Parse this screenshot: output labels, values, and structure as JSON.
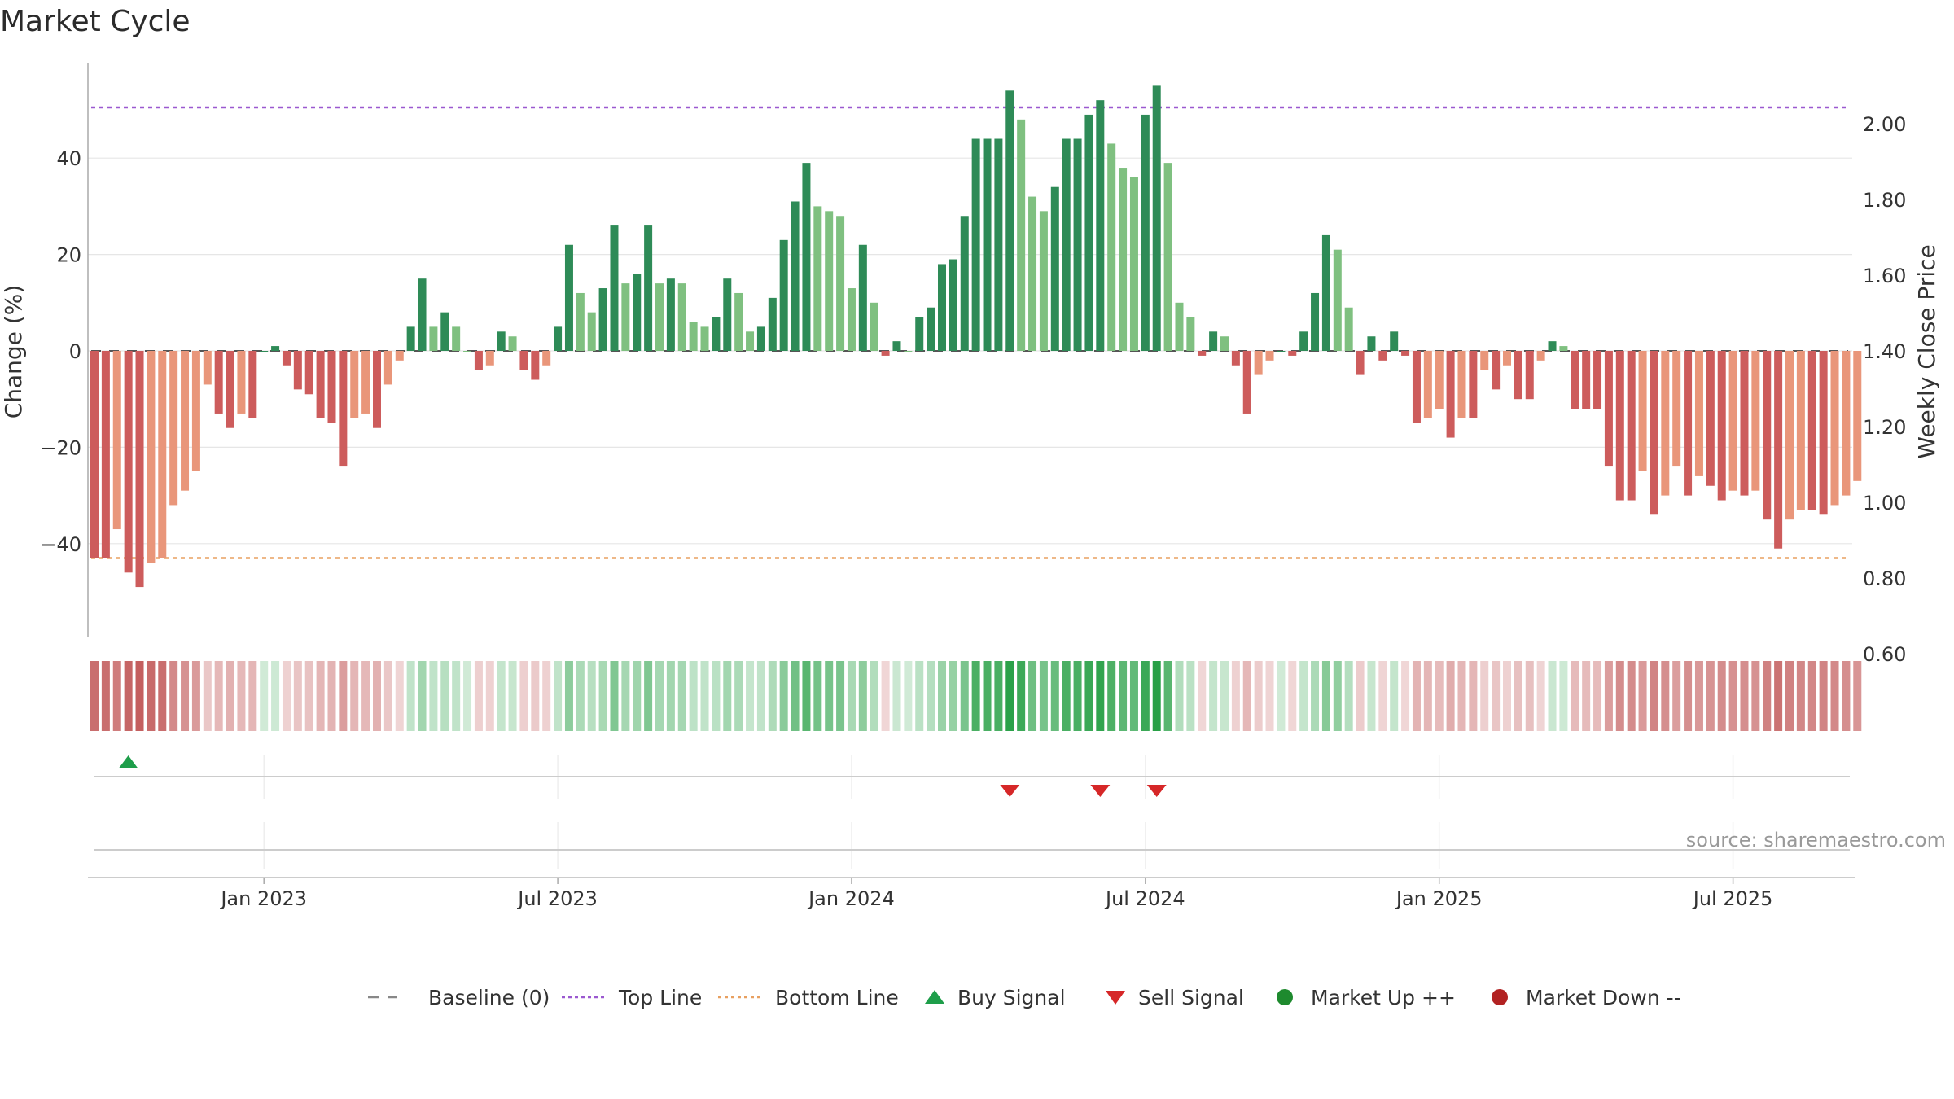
{
  "chart_data": {
    "type": "bar",
    "title": "Market Cycle",
    "ylabel": "Change (%)",
    "y2label": "Weekly Close Price",
    "ylim": [
      -60,
      60
    ],
    "y2lim": [
      0.6,
      2.1
    ],
    "yticks": [
      40,
      20,
      0,
      -20,
      -40
    ],
    "ytick_labels": [
      "40",
      "20",
      "0",
      "−20",
      "−40"
    ],
    "y2ticks": [
      2.0,
      1.8,
      1.6,
      1.4,
      1.2,
      1.0,
      0.8,
      0.6
    ],
    "y2tick_labels": [
      "2.00",
      "1.80",
      "1.60",
      "1.40",
      "1.20",
      "1.00",
      "0.80",
      "0.60"
    ],
    "xtick_labels": [
      "Jan 2023",
      "Jul 2023",
      "Jan 2024",
      "Jul 2024",
      "Jan 2025",
      "Jul 2025"
    ],
    "xtick_index": [
      15,
      41,
      67,
      93,
      119,
      145
    ],
    "top_line": 50.5,
    "bottom_line": -43,
    "x_start_date": "2022-09-04",
    "grid": true,
    "legend_position": "bottom-center",
    "values": [
      -43,
      -43,
      -37,
      -46,
      -49,
      -44,
      -43,
      -32,
      -29,
      -25,
      -7,
      -13,
      -16,
      -13,
      -14,
      0,
      1,
      -3,
      -8,
      -9,
      -14,
      -15,
      -24,
      -14,
      -13,
      -16,
      -7,
      -2,
      5,
      15,
      5,
      8,
      5,
      0,
      -4,
      -3,
      4,
      3,
      -4,
      -6,
      -3,
      5,
      22,
      12,
      8,
      13,
      26,
      14,
      16,
      26,
      14,
      15,
      14,
      6,
      5,
      7,
      15,
      12,
      4,
      5,
      11,
      23,
      31,
      39,
      30,
      29,
      28,
      13,
      22,
      10,
      -1,
      2,
      0,
      7,
      9,
      18,
      19,
      28,
      44,
      44,
      44,
      54,
      48,
      32,
      29,
      34,
      44,
      44,
      49,
      52,
      43,
      38,
      36,
      49,
      55,
      39,
      10,
      7,
      -1,
      4,
      3,
      -3,
      -13,
      -5,
      -2,
      0,
      -1,
      4,
      12,
      24,
      21,
      9,
      -5,
      3,
      -2,
      4,
      -1,
      -15,
      -14,
      -12,
      -18,
      -14,
      -14,
      -4,
      -8,
      -3,
      -10,
      -10,
      -2,
      2,
      1,
      -12,
      -12,
      -12,
      -24,
      -31,
      -31,
      -25,
      -34,
      -30,
      -24,
      -30,
      -26,
      -28,
      -31,
      -29,
      -30,
      -29,
      -35,
      -41,
      -35,
      -33,
      -33,
      -34,
      -32,
      -30,
      -27
    ],
    "signals": {
      "buy": [
        3
      ],
      "sell": [
        81,
        89,
        94
      ]
    },
    "legend": [
      {
        "label": "Baseline (0)",
        "symbol": "dash",
        "color": "#888888"
      },
      {
        "label": "Top Line",
        "symbol": "dotted",
        "color": "#9b59d0"
      },
      {
        "label": "Bottom Line",
        "symbol": "dotted",
        "color": "#e8a060"
      },
      {
        "label": "Buy Signal",
        "symbol": "triangle-up",
        "color": "#1e9e4a"
      },
      {
        "label": "Sell Signal",
        "symbol": "triangle-down",
        "color": "#d62728"
      },
      {
        "label": "Market Up ++",
        "symbol": "circle",
        "color": "#1e8a2e"
      },
      {
        "label": "Market Down --",
        "symbol": "circle",
        "color": "#b22222"
      }
    ],
    "colors": {
      "up_strong": "#2e8b57",
      "up_light": "#7fc080",
      "down_strong": "#cd5c5c",
      "down_light": "#e9967a",
      "top_line": "#9b59d0",
      "bottom_line": "#e8a060"
    }
  },
  "source_text": "source: sharemaestro.com"
}
